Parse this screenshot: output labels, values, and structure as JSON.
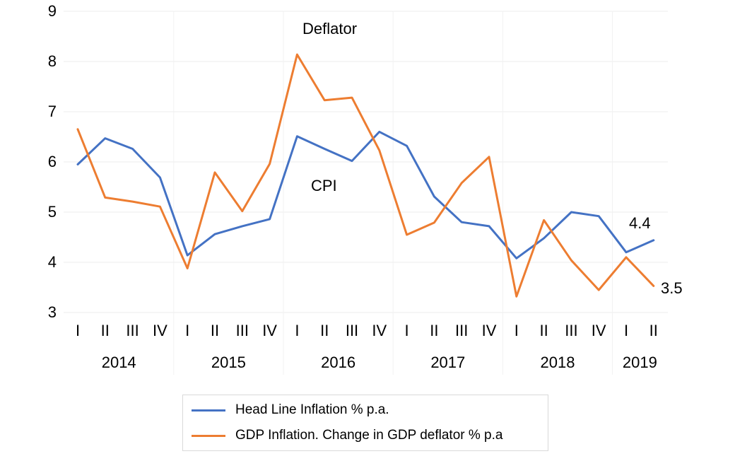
{
  "chart_data": {
    "type": "line",
    "title": "",
    "xlabel": "",
    "ylabel": "",
    "ylim": [
      3,
      9
    ],
    "yticks": [
      3,
      4,
      5,
      6,
      7,
      8,
      9
    ],
    "grid": true,
    "legend_position": "bottom",
    "quarters": [
      "I",
      "II",
      "III",
      "IV",
      "I",
      "II",
      "III",
      "IV",
      "I",
      "II",
      "III",
      "IV",
      "I",
      "II",
      "III",
      "IV",
      "I",
      "II",
      "III",
      "IV",
      "I",
      "II"
    ],
    "years": [
      {
        "label": "2014",
        "quarters": 4
      },
      {
        "label": "2015",
        "quarters": 4
      },
      {
        "label": "2016",
        "quarters": 4
      },
      {
        "label": "2017",
        "quarters": 4
      },
      {
        "label": "2018",
        "quarters": 4
      },
      {
        "label": "2019",
        "quarters": 2
      }
    ],
    "series": [
      {
        "name": "Head Line Inflation % p.a.",
        "color": "#4472C4",
        "values": [
          5.95,
          6.47,
          6.26,
          5.69,
          4.14,
          4.56,
          4.72,
          4.86,
          6.51,
          6.26,
          6.02,
          6.6,
          6.32,
          5.31,
          4.8,
          4.72,
          4.08,
          4.48,
          5.0,
          4.92,
          4.2,
          4.44
        ]
      },
      {
        "name": "GDP Inflation.  Change in GDP deflator % p.a",
        "color": "#ED7D31",
        "values": [
          6.65,
          5.29,
          5.21,
          5.11,
          3.88,
          5.79,
          5.02,
          5.96,
          8.14,
          7.23,
          7.28,
          6.23,
          4.55,
          4.79,
          5.58,
          6.1,
          3.32,
          4.84,
          4.04,
          3.45,
          4.1,
          3.53
        ]
      }
    ],
    "annotations": [
      {
        "text": "Deflator"
      },
      {
        "text": "CPI"
      },
      {
        "text": "4.4"
      },
      {
        "text": "3.5"
      }
    ]
  }
}
